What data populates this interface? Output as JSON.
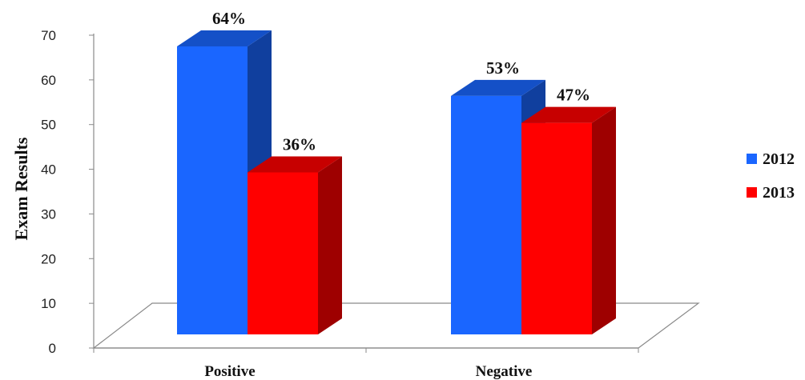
{
  "chart_data": {
    "type": "bar",
    "title": "",
    "xlabel": "",
    "ylabel": "Exam Results",
    "categories": [
      "Positive",
      "Negative"
    ],
    "series": [
      {
        "name": "2012",
        "values": [
          64,
          53
        ],
        "labels": [
          "64%",
          "53%"
        ],
        "color": "#1a66ff"
      },
      {
        "name": "2013",
        "values": [
          36,
          47
        ],
        "labels": [
          "36%",
          "47%"
        ],
        "color": "#ff0000"
      }
    ],
    "ylim": [
      0,
      70
    ],
    "yticks": [
      "0",
      "10",
      "20",
      "30",
      "40",
      "50",
      "60",
      "70"
    ],
    "legend_position": "right",
    "grid": false,
    "style": "3d-column"
  }
}
